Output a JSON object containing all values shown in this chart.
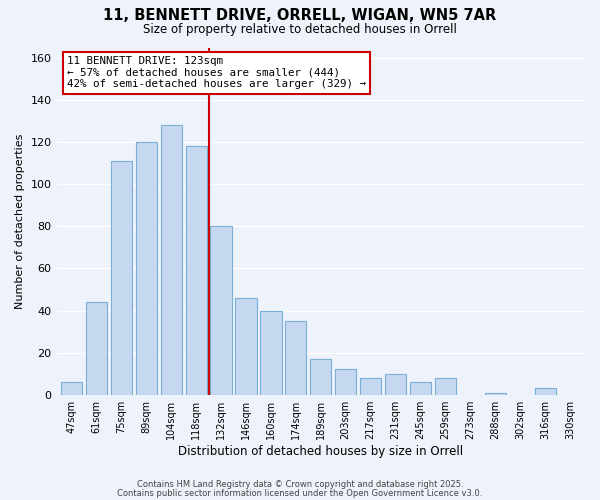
{
  "title": "11, BENNETT DRIVE, ORRELL, WIGAN, WN5 7AR",
  "subtitle": "Size of property relative to detached houses in Orrell",
  "xlabel": "Distribution of detached houses by size in Orrell",
  "ylabel": "Number of detached properties",
  "categories": [
    "47sqm",
    "61sqm",
    "75sqm",
    "89sqm",
    "104sqm",
    "118sqm",
    "132sqm",
    "146sqm",
    "160sqm",
    "174sqm",
    "189sqm",
    "203sqm",
    "217sqm",
    "231sqm",
    "245sqm",
    "259sqm",
    "273sqm",
    "288sqm",
    "302sqm",
    "316sqm",
    "330sqm"
  ],
  "values": [
    6,
    44,
    111,
    120,
    128,
    118,
    80,
    46,
    40,
    35,
    17,
    12,
    8,
    10,
    6,
    8,
    0,
    1,
    0,
    3,
    0
  ],
  "bar_color": "#c5d8f0",
  "bar_edge_color": "#7aaed6",
  "vline_x": 5.5,
  "vline_color": "#cc0000",
  "annotation_line1": "11 BENNETT DRIVE: 123sqm",
  "annotation_line2": "← 57% of detached houses are smaller (444)",
  "annotation_line3": "42% of semi-detached houses are larger (329) →",
  "ylim": [
    0,
    165
  ],
  "yticks": [
    0,
    20,
    40,
    60,
    80,
    100,
    120,
    140,
    160
  ],
  "background_color": "#eef2fa",
  "grid_color": "#ffffff",
  "footnote1": "Contains HM Land Registry data © Crown copyright and database right 2025.",
  "footnote2": "Contains public sector information licensed under the Open Government Licence v3.0."
}
